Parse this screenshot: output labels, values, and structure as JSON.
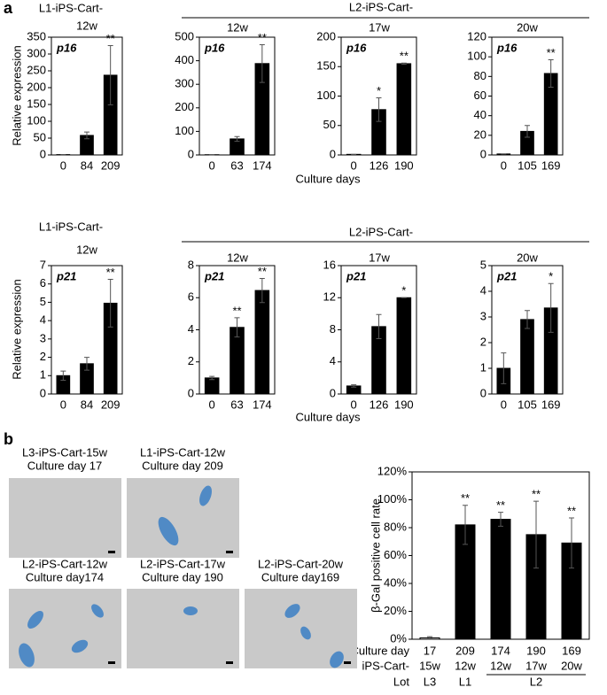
{
  "panel_a": {
    "label": "a",
    "rows": [
      {
        "left_group": "L1-iPS-Cart-",
        "right_group": "L2-iPS-Cart-",
        "ylabel": "Relative expression",
        "xlabel": "Culture days"
      },
      {
        "left_group": "L1-iPS-Cart-",
        "right_group": "L2-iPS-Cart-",
        "ylabel": "Relative expression",
        "xlabel": "Culture days"
      }
    ]
  },
  "panel_b": {
    "label": "b",
    "images": [
      {
        "caption": [
          "L3-iPS-Cart-15w",
          "Culture day 17"
        ]
      },
      {
        "caption": [
          "L1-iPS-Cart-12w",
          "Culture day 209"
        ]
      },
      {
        "caption": [
          "L2-iPS-Cart-12w",
          "Culture day174"
        ]
      },
      {
        "caption": [
          "L2-iPS-Cart-17w",
          "Culture day 190"
        ]
      },
      {
        "caption": [
          "L2-iPS-Cart-20w",
          "Culture day169"
        ]
      }
    ]
  },
  "chart_data": [
    {
      "type": "bar",
      "title": "12w",
      "annotation": "p16",
      "color": "#000000",
      "categories": [
        "0",
        "84",
        "209"
      ],
      "values": [
        1,
        58,
        237
      ],
      "errors": [
        0,
        10,
        88
      ],
      "significance": [
        null,
        null,
        "**"
      ],
      "ylim": [
        0,
        350
      ],
      "yticks": [
        0,
        50,
        100,
        150,
        200,
        250,
        300,
        350
      ]
    },
    {
      "type": "bar",
      "title": "12w",
      "annotation": "p16",
      "color": "#000000",
      "categories": [
        "0",
        "63",
        "174"
      ],
      "values": [
        1,
        68,
        388
      ],
      "errors": [
        0,
        10,
        80
      ],
      "significance": [
        null,
        null,
        "**"
      ],
      "ylim": [
        0,
        500
      ],
      "yticks": [
        0,
        100,
        200,
        300,
        400,
        500
      ]
    },
    {
      "type": "bar",
      "title": "17w",
      "annotation": "p16",
      "color": "#000000",
      "categories": [
        "0",
        "126",
        "190"
      ],
      "values": [
        1,
        77,
        155
      ],
      "errors": [
        0,
        20,
        1
      ],
      "significance": [
        null,
        "*",
        "**"
      ],
      "ylim": [
        0,
        200
      ],
      "yticks": [
        0,
        50,
        100,
        150,
        200
      ]
    },
    {
      "type": "bar",
      "title": "20w",
      "annotation": "p16",
      "color": "#000000",
      "categories": [
        "0",
        "105",
        "169"
      ],
      "values": [
        1,
        24,
        83
      ],
      "errors": [
        0,
        6,
        14
      ],
      "significance": [
        null,
        null,
        "**"
      ],
      "ylim": [
        0,
        120
      ],
      "yticks": [
        0,
        20,
        40,
        60,
        80,
        100,
        120
      ]
    },
    {
      "type": "bar",
      "title": "12w",
      "annotation": "p21",
      "color": "#000000",
      "categories": [
        "0",
        "84",
        "209"
      ],
      "values": [
        1,
        1.65,
        4.95
      ],
      "errors": [
        0.25,
        0.35,
        1.3
      ],
      "significance": [
        null,
        null,
        "**"
      ],
      "ylim": [
        0,
        7
      ],
      "yticks": [
        0,
        1,
        2,
        3,
        4,
        5,
        6,
        7
      ]
    },
    {
      "type": "bar",
      "title": "12w",
      "annotation": "p21",
      "color": "#000000",
      "categories": [
        "0",
        "63",
        "174"
      ],
      "values": [
        1,
        4.15,
        6.45
      ],
      "errors": [
        0.1,
        0.6,
        0.75
      ],
      "significance": [
        null,
        "**",
        "**"
      ],
      "ylim": [
        0,
        8
      ],
      "yticks": [
        0,
        2,
        4,
        6,
        8
      ]
    },
    {
      "type": "bar",
      "title": "17w",
      "annotation": "p21",
      "color": "#000000",
      "categories": [
        "0",
        "126",
        "190"
      ],
      "values": [
        1,
        8.4,
        12
      ],
      "errors": [
        0.15,
        1.5,
        0
      ],
      "significance": [
        null,
        null,
        "*"
      ],
      "ylim": [
        0,
        16
      ],
      "yticks": [
        0,
        4,
        8,
        12,
        16
      ]
    },
    {
      "type": "bar",
      "title": "20w",
      "annotation": "p21",
      "color": "#000000",
      "categories": [
        "0",
        "105",
        "169"
      ],
      "values": [
        1,
        2.9,
        3.35
      ],
      "errors": [
        0.6,
        0.35,
        0.95
      ],
      "significance": [
        null,
        null,
        "*"
      ],
      "ylim": [
        0,
        5
      ],
      "yticks": [
        0,
        1,
        2,
        3,
        4,
        5
      ]
    },
    {
      "type": "bar",
      "ylabel": "β-Gal positive cell rate",
      "category_label": "Culture day",
      "colors": [
        "#ffffff",
        "#000000",
        "#000000",
        "#000000",
        "#000000"
      ],
      "categories": [
        "17",
        "209",
        "174",
        "190",
        "169"
      ],
      "values": [
        1,
        82,
        86,
        75,
        69
      ],
      "errors": [
        0.8,
        14,
        5,
        24,
        18
      ],
      "significance": [
        null,
        "**",
        "**",
        "**",
        "**"
      ],
      "ylim": [
        0,
        120
      ],
      "yticks": [
        {
          "value": 0,
          "label": "0%"
        },
        {
          "value": 20,
          "label": "20%"
        },
        {
          "value": 40,
          "label": "40%"
        },
        {
          "value": 60,
          "label": "60%"
        },
        {
          "value": 80,
          "label": "80%"
        },
        {
          "value": 100,
          "label": "100%"
        },
        {
          "value": 120,
          "label": "120%"
        }
      ],
      "extra_rows": [
        {
          "label": "iPS-Cart-",
          "values": [
            "15w",
            "12w",
            "12w",
            "17w",
            "20w"
          ]
        },
        {
          "label": "Lot",
          "values": [
            "L3",
            "L1",
            "L2"
          ]
        }
      ]
    }
  ]
}
